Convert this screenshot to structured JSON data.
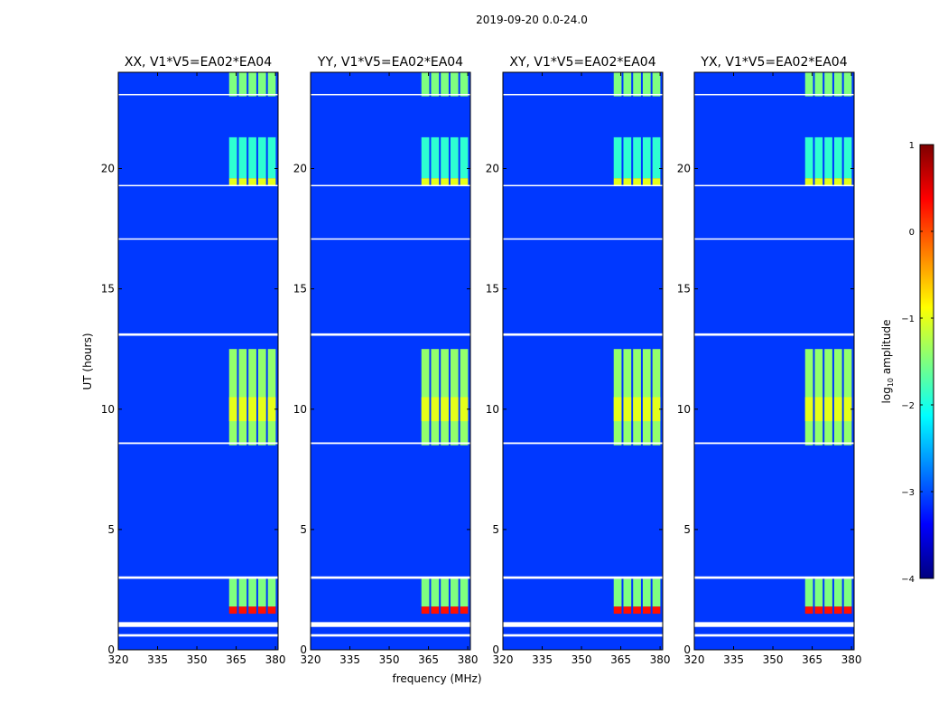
{
  "chart_data": {
    "type": "heatmap",
    "suptitle": "2019-09-20 0.0-24.0",
    "xlabel": "frequency (MHz)",
    "ylabel": "UT (hours)",
    "xlim": [
      320,
      381
    ],
    "ylim": [
      0,
      24
    ],
    "x_ticks": [
      "320",
      "335",
      "350",
      "365",
      "380"
    ],
    "x_tick_values": [
      320,
      335,
      350,
      365,
      380
    ],
    "y_ticks": [
      "0",
      "5",
      "10",
      "15",
      "20"
    ],
    "y_tick_values": [
      0,
      5,
      10,
      15,
      20
    ],
    "colorbar": {
      "label_prefix": "log",
      "label_sub": "10",
      "label_suffix": " amplitude",
      "range": [
        -4,
        1
      ],
      "ticks": [
        "1",
        "0",
        "−1",
        "−2",
        "−3",
        "−4"
      ],
      "tick_values": [
        1,
        0,
        -1,
        -2,
        -3,
        -4
      ],
      "colormap": [
        "#00007f",
        "#0000ff",
        "#007fff",
        "#00ffff",
        "#7fff7f",
        "#ffff00",
        "#ff7f00",
        "#ff0000",
        "#7f0000"
      ]
    },
    "panels": [
      {
        "title": "XX, V1*V5=EA02*EA04"
      },
      {
        "title": "YY, V1*V5=EA02*EA04"
      },
      {
        "title": "XY, V1*V5=EA02*EA04"
      },
      {
        "title": "YX, V1*V5=EA02*EA04"
      }
    ],
    "background_log_amplitude": -3.1,
    "rfi_bands_mhz": [
      [
        362.3,
        365.3
      ],
      [
        366,
        369
      ],
      [
        369.7,
        372.7
      ],
      [
        373.4,
        376.4
      ],
      [
        377.1,
        380.1
      ]
    ],
    "rfi_periods": [
      {
        "ut": [
          1.5,
          1.8
        ],
        "log_amplitude": 0.3
      },
      {
        "ut": [
          1.8,
          3.0
        ],
        "log_amplitude": -1.5
      },
      {
        "ut": [
          8.5,
          12.5
        ],
        "log_amplitude": -1.4
      },
      {
        "ut": [
          9.5,
          10.5
        ],
        "log_amplitude": -1.0
      },
      {
        "ut": [
          19.3,
          19.6
        ],
        "log_amplitude": -1.0
      },
      {
        "ut": [
          19.6,
          21.3
        ],
        "log_amplitude": -1.9
      },
      {
        "ut": [
          23.0,
          24.0
        ],
        "log_amplitude": -1.5
      }
    ],
    "flagged_ut": [
      [
        0.55,
        0.65
      ],
      [
        0.95,
        1.15
      ],
      [
        2.95,
        3.05
      ],
      [
        8.55,
        8.62
      ],
      [
        13.05,
        13.15
      ],
      [
        17.05,
        17.1
      ],
      [
        19.28,
        19.32
      ],
      [
        23.05,
        23.1
      ]
    ]
  }
}
